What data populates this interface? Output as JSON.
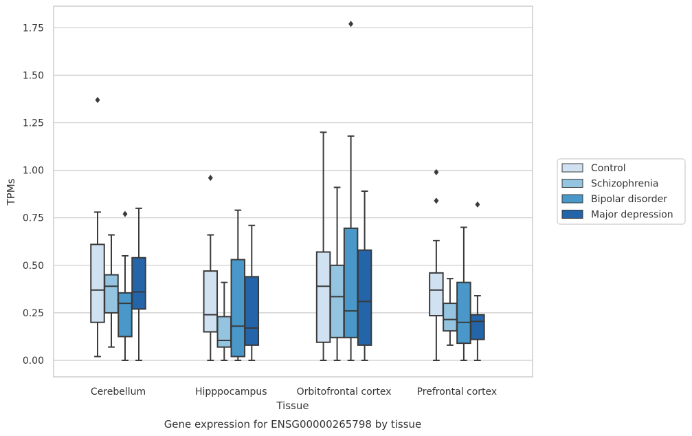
{
  "chart_data": {
    "type": "box",
    "title": "",
    "caption": "Gene expression for ENSG00000265798 by tissue",
    "xlabel": "Tissue",
    "ylabel": "TPMs",
    "ylim": [
      -0.09,
      1.84
    ],
    "yticks": [
      0.0,
      0.25,
      0.5,
      0.75,
      1.0,
      1.25,
      1.5,
      1.75
    ],
    "ytick_labels": [
      "0.00",
      "0.25",
      "0.50",
      "0.75",
      "1.00",
      "1.25",
      "1.50",
      "1.75"
    ],
    "grid": "horizontal",
    "legend_position": "outside-right",
    "categories": [
      "Cerebellum",
      "Hipppocampus",
      "Orbitofrontal cortex",
      "Prefrontal cortex"
    ],
    "series": [
      {
        "name": "Control",
        "color": "#d0e1f2",
        "boxes": [
          {
            "whisker_low": 0.02,
            "q1": 0.2,
            "median": 0.37,
            "q3": 0.61,
            "whisker_high": 0.78,
            "outliers": [
              1.37
            ]
          },
          {
            "whisker_low": 0.0,
            "q1": 0.15,
            "median": 0.24,
            "q3": 0.47,
            "whisker_high": 0.66,
            "outliers": [
              0.96
            ]
          },
          {
            "whisker_low": 0.0,
            "q1": 0.095,
            "median": 0.39,
            "q3": 0.57,
            "whisker_high": 1.2,
            "outliers": []
          },
          {
            "whisker_low": 0.0,
            "q1": 0.235,
            "median": 0.37,
            "q3": 0.46,
            "whisker_high": 0.63,
            "outliers": [
              0.99,
              0.84
            ]
          }
        ]
      },
      {
        "name": "Schizophrenia",
        "color": "#94c4df",
        "boxes": [
          {
            "whisker_low": 0.07,
            "q1": 0.25,
            "median": 0.39,
            "q3": 0.45,
            "whisker_high": 0.66,
            "outliers": []
          },
          {
            "whisker_low": 0.0,
            "q1": 0.07,
            "median": 0.105,
            "q3": 0.23,
            "whisker_high": 0.41,
            "outliers": []
          },
          {
            "whisker_low": 0.0,
            "q1": 0.12,
            "median": 0.335,
            "q3": 0.5,
            "whisker_high": 0.91,
            "outliers": []
          },
          {
            "whisker_low": 0.08,
            "q1": 0.155,
            "median": 0.215,
            "q3": 0.3,
            "whisker_high": 0.43,
            "outliers": []
          }
        ]
      },
      {
        "name": "Bipolar disorder",
        "color": "#4a98c9",
        "boxes": [
          {
            "whisker_low": 0.0,
            "q1": 0.125,
            "median": 0.3,
            "q3": 0.355,
            "whisker_high": 0.55,
            "outliers": [
              0.77
            ]
          },
          {
            "whisker_low": 0.0,
            "q1": 0.02,
            "median": 0.18,
            "q3": 0.53,
            "whisker_high": 0.79,
            "outliers": []
          },
          {
            "whisker_low": 0.0,
            "q1": 0.12,
            "median": 0.26,
            "q3": 0.695,
            "whisker_high": 1.18,
            "outliers": [
              1.77
            ]
          },
          {
            "whisker_low": 0.0,
            "q1": 0.09,
            "median": 0.2,
            "q3": 0.41,
            "whisker_high": 0.7,
            "outliers": []
          }
        ]
      },
      {
        "name": "Major depression",
        "color": "#2464a8",
        "boxes": [
          {
            "whisker_low": 0.0,
            "q1": 0.27,
            "median": 0.36,
            "q3": 0.54,
            "whisker_high": 0.8,
            "outliers": []
          },
          {
            "whisker_low": 0.0,
            "q1": 0.08,
            "median": 0.17,
            "q3": 0.44,
            "whisker_high": 0.71,
            "outliers": []
          },
          {
            "whisker_low": 0.0,
            "q1": 0.08,
            "median": 0.31,
            "q3": 0.58,
            "whisker_high": 0.89,
            "outliers": []
          },
          {
            "whisker_low": 0.0,
            "q1": 0.11,
            "median": 0.205,
            "q3": 0.24,
            "whisker_high": 0.34,
            "outliers": [
              0.82
            ]
          }
        ]
      }
    ]
  }
}
